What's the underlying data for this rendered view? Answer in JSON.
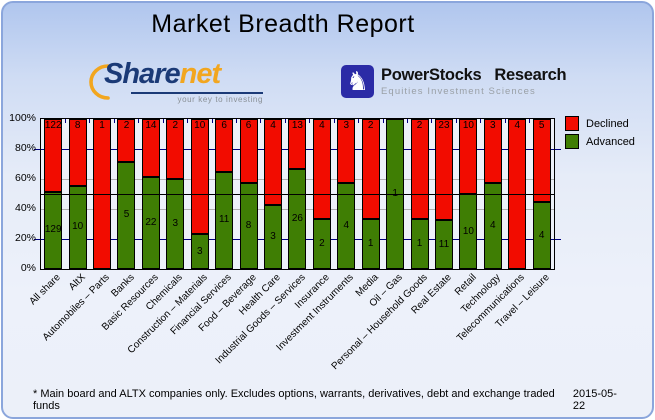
{
  "title": "Market Breadth Report",
  "logos": {
    "sharenet": {
      "text_share": "Share",
      "text_net": "net",
      "tagline": "your key to investing"
    },
    "powerstocks": {
      "knight": "♞",
      "title_1": "PowerStocks",
      "title_2": "Research",
      "subtitle": "Equities Investment Sciences"
    }
  },
  "chart_data": {
    "type": "bar",
    "stacked": true,
    "ylim": [
      0,
      100
    ],
    "yticks": [
      "100%",
      "80%",
      "60%",
      "40%",
      "20%",
      "0%"
    ],
    "grid": {
      "navy_lines_pct": [
        80,
        20
      ],
      "gray_lines_pct": [
        60,
        40
      ],
      "black_line_pct": 50
    },
    "legend_position": "top-right",
    "legend": [
      {
        "label": "Declined",
        "color": "#f20c00"
      },
      {
        "label": "Advanced",
        "color": "#3f7e04"
      }
    ],
    "categories": [
      "All share",
      "AltX",
      "Automobiles – Parts",
      "Banks",
      "Basic Resources",
      "Chemicals",
      "Construction – Materials",
      "Financial Services",
      "Food – Beverage",
      "Health Care",
      "Industrial Goods – Services",
      "Insurance",
      "Investment Instruments",
      "Media",
      "Oil – Gas",
      "Personal – Household Goods",
      "Real Estate",
      "Retail",
      "Technology",
      "Telecommunications",
      "Travel – Leisure"
    ],
    "series": [
      {
        "name": "Declined",
        "values": [
          122,
          8,
          1,
          2,
          14,
          2,
          10,
          6,
          6,
          4,
          13,
          4,
          3,
          2,
          0,
          2,
          23,
          10,
          3,
          4,
          5
        ]
      },
      {
        "name": "Advanced",
        "values": [
          129,
          10,
          0,
          5,
          22,
          3,
          3,
          11,
          8,
          3,
          26,
          2,
          4,
          1,
          1,
          1,
          11,
          10,
          4,
          0,
          4
        ]
      }
    ]
  },
  "footer": {
    "note": "* Main board and ALTX companies only. Excludes options, warrants, derivatives, debt and exchange traded funds",
    "date": "2015-05-22"
  },
  "colors": {
    "declined": "#f20c00",
    "advanced": "#3f7e04",
    "navy_grid": "#000080",
    "gray_grid": "#b0b0b0",
    "fifty_line": "#000000"
  }
}
